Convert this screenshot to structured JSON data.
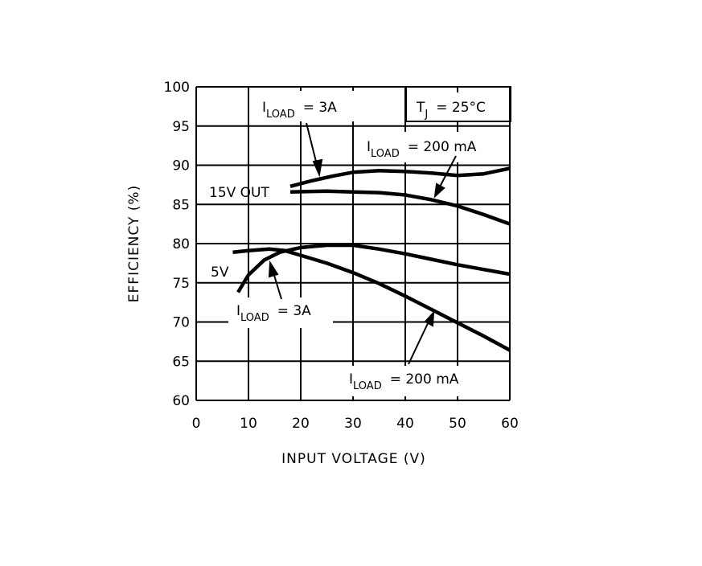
{
  "chart_data": {
    "type": "line",
    "title": "",
    "xlabel": "INPUT VOLTAGE (V)",
    "ylabel": "EFFICIENCY (%)",
    "xlim": [
      0,
      60
    ],
    "ylim": [
      60,
      100
    ],
    "xticks": [
      "0",
      "10",
      "20",
      "30",
      "40",
      "50",
      "60"
    ],
    "yticks": [
      "100",
      "95",
      "90",
      "85",
      "80",
      "75",
      "70",
      "65",
      "60"
    ],
    "grid": true,
    "series": [
      {
        "x": [
          18,
          22,
          26,
          30,
          35,
          40,
          45,
          50,
          55,
          60
        ],
        "y": [
          87.3,
          88.0,
          88.6,
          89.1,
          89.3,
          89.2,
          89.0,
          88.7,
          88.9,
          89.6
        ],
        "color": "#000000"
      },
      {
        "x": [
          18,
          25,
          30,
          35,
          40,
          45,
          50,
          55,
          60
        ],
        "y": [
          86.6,
          86.7,
          86.6,
          86.5,
          86.2,
          85.6,
          84.8,
          83.7,
          82.5
        ],
        "color": "#000000"
      },
      {
        "x": [
          8,
          10,
          13,
          16,
          20,
          25,
          30,
          35,
          40,
          45,
          50,
          55,
          60
        ],
        "y": [
          73.8,
          76.0,
          77.9,
          78.9,
          79.5,
          79.8,
          79.8,
          79.3,
          78.7,
          78.0,
          77.3,
          76.7,
          76.1
        ],
        "color": "#000000"
      },
      {
        "x": [
          7,
          10,
          14,
          17,
          20,
          25,
          30,
          35,
          40,
          45,
          50,
          55,
          60
        ],
        "y": [
          78.9,
          79.1,
          79.3,
          79.1,
          78.5,
          77.5,
          76.3,
          74.9,
          73.3,
          71.6,
          69.9,
          68.2,
          66.4
        ],
        "color": "#000000"
      }
    ],
    "annotations": [
      {
        "id": "a1",
        "main": "I",
        "sub": "LOAD",
        "tail": "= 3A"
      },
      {
        "id": "a2",
        "main": "T",
        "sub": "J",
        "tail": "= 25°C"
      },
      {
        "id": "a3",
        "main": "I",
        "sub": "LOAD",
        "tail": "= 200 mA"
      },
      {
        "id": "a4",
        "text": "15V OUT"
      },
      {
        "id": "a5",
        "text": "5V"
      },
      {
        "id": "a6",
        "main": "I",
        "sub": "LOAD",
        "tail": "= 3A"
      },
      {
        "id": "a7",
        "main": "I",
        "sub": "LOAD",
        "tail": "= 200 mA"
      }
    ]
  }
}
